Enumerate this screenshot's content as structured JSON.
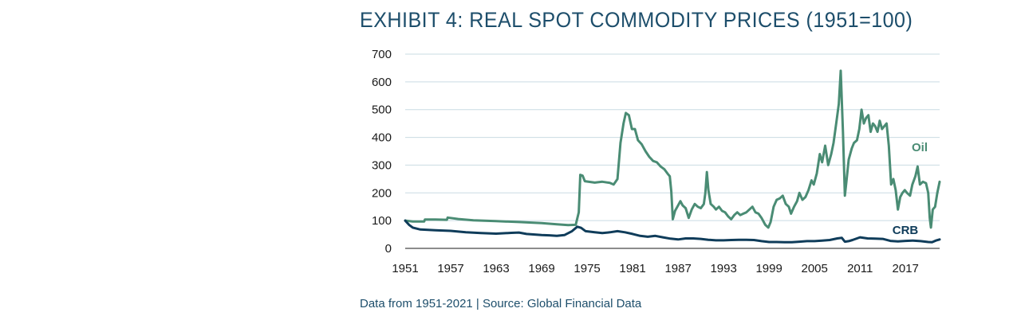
{
  "title": "EXHIBIT 4: REAL SPOT COMMODITY PRICES (1951=100)",
  "footnote": "Data from 1951-2021 | Source: Global Financial Data",
  "chart_data": {
    "type": "line",
    "title": "EXHIBIT 4: REAL SPOT COMMODITY PRICES (1951=100)",
    "xlim": [
      1951,
      2021.5
    ],
    "ylim": [
      0,
      700
    ],
    "grid": true,
    "x_ticks": [
      "1951",
      "1957",
      "1963",
      "1969",
      "1975",
      "1981",
      "1987",
      "1993",
      "1999",
      "2005",
      "2011",
      "2017"
    ],
    "y_ticks": [
      "0",
      "100",
      "200",
      "300",
      "400",
      "500",
      "600",
      "700"
    ],
    "colors": {
      "Oil": "#4a8c74",
      "CRB": "#0f3c5a",
      "grid": "#c9dbe3",
      "text": "#1d4e6b"
    },
    "series": [
      {
        "name": "Oil",
        "points": [
          [
            1951.0,
            100
          ],
          [
            1952.0,
            97
          ],
          [
            1953.5,
            97
          ],
          [
            1953.6,
            104
          ],
          [
            1955.0,
            104
          ],
          [
            1956.5,
            103
          ],
          [
            1956.6,
            111
          ],
          [
            1958.0,
            106
          ],
          [
            1960.0,
            101
          ],
          [
            1963.0,
            98
          ],
          [
            1966.0,
            95
          ],
          [
            1969.0,
            91
          ],
          [
            1971.0,
            87
          ],
          [
            1972.5,
            84
          ],
          [
            1973.5,
            85
          ],
          [
            1973.9,
            130
          ],
          [
            1974.1,
            265
          ],
          [
            1974.4,
            262
          ],
          [
            1974.7,
            242
          ],
          [
            1976.0,
            237
          ],
          [
            1977.0,
            240
          ],
          [
            1978.0,
            236
          ],
          [
            1978.5,
            230
          ],
          [
            1979.0,
            250
          ],
          [
            1979.4,
            380
          ],
          [
            1979.8,
            450
          ],
          [
            1980.1,
            488
          ],
          [
            1980.5,
            480
          ],
          [
            1980.9,
            430
          ],
          [
            1981.3,
            430
          ],
          [
            1981.7,
            390
          ],
          [
            1982.2,
            375
          ],
          [
            1982.7,
            350
          ],
          [
            1983.2,
            330
          ],
          [
            1983.7,
            315
          ],
          [
            1984.2,
            310
          ],
          [
            1984.7,
            295
          ],
          [
            1985.2,
            285
          ],
          [
            1985.6,
            270
          ],
          [
            1985.9,
            260
          ],
          [
            1986.1,
            205
          ],
          [
            1986.3,
            105
          ],
          [
            1986.6,
            135
          ],
          [
            1986.9,
            150
          ],
          [
            1987.3,
            170
          ],
          [
            1987.6,
            155
          ],
          [
            1988.0,
            145
          ],
          [
            1988.4,
            110
          ],
          [
            1988.8,
            140
          ],
          [
            1989.2,
            160
          ],
          [
            1989.6,
            150
          ],
          [
            1990.0,
            145
          ],
          [
            1990.4,
            160
          ],
          [
            1990.6,
            200
          ],
          [
            1990.8,
            275
          ],
          [
            1991.0,
            210
          ],
          [
            1991.3,
            160
          ],
          [
            1991.7,
            150
          ],
          [
            1992.0,
            140
          ],
          [
            1992.4,
            150
          ],
          [
            1992.8,
            135
          ],
          [
            1993.2,
            130
          ],
          [
            1993.6,
            115
          ],
          [
            1994.0,
            105
          ],
          [
            1994.4,
            120
          ],
          [
            1994.8,
            130
          ],
          [
            1995.2,
            120
          ],
          [
            1995.6,
            125
          ],
          [
            1996.0,
            130
          ],
          [
            1996.4,
            140
          ],
          [
            1996.8,
            150
          ],
          [
            1997.2,
            130
          ],
          [
            1997.6,
            125
          ],
          [
            1998.0,
            110
          ],
          [
            1998.5,
            85
          ],
          [
            1998.9,
            75
          ],
          [
            1999.2,
            95
          ],
          [
            1999.6,
            150
          ],
          [
            2000.0,
            175
          ],
          [
            2000.4,
            180
          ],
          [
            2000.8,
            190
          ],
          [
            2001.2,
            160
          ],
          [
            2001.6,
            150
          ],
          [
            2001.9,
            125
          ],
          [
            2002.3,
            150
          ],
          [
            2002.7,
            170
          ],
          [
            2003.0,
            200
          ],
          [
            2003.4,
            175
          ],
          [
            2003.8,
            185
          ],
          [
            2004.2,
            210
          ],
          [
            2004.6,
            245
          ],
          [
            2004.9,
            230
          ],
          [
            2005.3,
            270
          ],
          [
            2005.7,
            340
          ],
          [
            2006.0,
            310
          ],
          [
            2006.4,
            370
          ],
          [
            2006.8,
            300
          ],
          [
            2007.2,
            340
          ],
          [
            2007.5,
            380
          ],
          [
            2007.9,
            460
          ],
          [
            2008.2,
            520
          ],
          [
            2008.45,
            640
          ],
          [
            2008.75,
            420
          ],
          [
            2009.0,
            190
          ],
          [
            2009.2,
            240
          ],
          [
            2009.5,
            320
          ],
          [
            2009.9,
            360
          ],
          [
            2010.2,
            380
          ],
          [
            2010.6,
            390
          ],
          [
            2010.9,
            430
          ],
          [
            2011.2,
            500
          ],
          [
            2011.5,
            450
          ],
          [
            2011.8,
            470
          ],
          [
            2012.1,
            480
          ],
          [
            2012.4,
            420
          ],
          [
            2012.7,
            450
          ],
          [
            2013.0,
            440
          ],
          [
            2013.3,
            420
          ],
          [
            2013.6,
            460
          ],
          [
            2013.9,
            430
          ],
          [
            2014.2,
            440
          ],
          [
            2014.5,
            450
          ],
          [
            2014.8,
            370
          ],
          [
            2015.1,
            230
          ],
          [
            2015.4,
            250
          ],
          [
            2015.7,
            210
          ],
          [
            2016.0,
            140
          ],
          [
            2016.3,
            185
          ],
          [
            2016.6,
            200
          ],
          [
            2016.9,
            210
          ],
          [
            2017.2,
            200
          ],
          [
            2017.6,
            190
          ],
          [
            2017.9,
            230
          ],
          [
            2018.3,
            260
          ],
          [
            2018.6,
            295
          ],
          [
            2018.9,
            230
          ],
          [
            2019.3,
            240
          ],
          [
            2019.7,
            235
          ],
          [
            2020.0,
            200
          ],
          [
            2020.2,
            110
          ],
          [
            2020.35,
            75
          ],
          [
            2020.6,
            140
          ],
          [
            2020.9,
            150
          ],
          [
            2021.2,
            200
          ],
          [
            2021.5,
            240
          ]
        ]
      },
      {
        "name": "CRB",
        "points": [
          [
            1951.0,
            100
          ],
          [
            1951.5,
            85
          ],
          [
            1952.0,
            75
          ],
          [
            1953.0,
            68
          ],
          [
            1955.0,
            65
          ],
          [
            1957.0,
            63
          ],
          [
            1959.0,
            58
          ],
          [
            1961.0,
            55
          ],
          [
            1963.0,
            53
          ],
          [
            1965.0,
            56
          ],
          [
            1966.0,
            57
          ],
          [
            1967.0,
            52
          ],
          [
            1969.0,
            48
          ],
          [
            1970.0,
            47
          ],
          [
            1971.0,
            45
          ],
          [
            1972.0,
            48
          ],
          [
            1973.0,
            62
          ],
          [
            1973.7,
            78
          ],
          [
            1974.2,
            74
          ],
          [
            1974.8,
            62
          ],
          [
            1976.0,
            58
          ],
          [
            1977.0,
            55
          ],
          [
            1978.0,
            58
          ],
          [
            1979.0,
            62
          ],
          [
            1980.0,
            58
          ],
          [
            1981.0,
            52
          ],
          [
            1982.0,
            45
          ],
          [
            1983.0,
            42
          ],
          [
            1984.0,
            45
          ],
          [
            1985.0,
            40
          ],
          [
            1986.0,
            35
          ],
          [
            1987.0,
            32
          ],
          [
            1988.0,
            36
          ],
          [
            1989.0,
            36
          ],
          [
            1990.0,
            34
          ],
          [
            1991.0,
            31
          ],
          [
            1992.0,
            29
          ],
          [
            1993.0,
            29
          ],
          [
            1994.0,
            30
          ],
          [
            1995.0,
            31
          ],
          [
            1996.0,
            31
          ],
          [
            1997.0,
            30
          ],
          [
            1998.0,
            26
          ],
          [
            1999.0,
            23
          ],
          [
            2000.0,
            23
          ],
          [
            2001.0,
            22
          ],
          [
            2002.0,
            22
          ],
          [
            2003.0,
            24
          ],
          [
            2004.0,
            26
          ],
          [
            2005.0,
            26
          ],
          [
            2006.0,
            28
          ],
          [
            2007.0,
            30
          ],
          [
            2008.0,
            36
          ],
          [
            2008.6,
            38
          ],
          [
            2009.0,
            24
          ],
          [
            2009.5,
            26
          ],
          [
            2010.0,
            30
          ],
          [
            2011.0,
            40
          ],
          [
            2012.0,
            36
          ],
          [
            2013.0,
            35
          ],
          [
            2014.0,
            34
          ],
          [
            2015.0,
            27
          ],
          [
            2016.0,
            25
          ],
          [
            2017.0,
            27
          ],
          [
            2018.0,
            28
          ],
          [
            2019.0,
            26
          ],
          [
            2020.0,
            23
          ],
          [
            2020.5,
            22
          ],
          [
            2021.0,
            28
          ],
          [
            2021.5,
            32
          ]
        ]
      }
    ],
    "annotations": [
      {
        "series": "Oil",
        "text": "Oil"
      },
      {
        "series": "CRB",
        "text": "CRB"
      }
    ]
  }
}
